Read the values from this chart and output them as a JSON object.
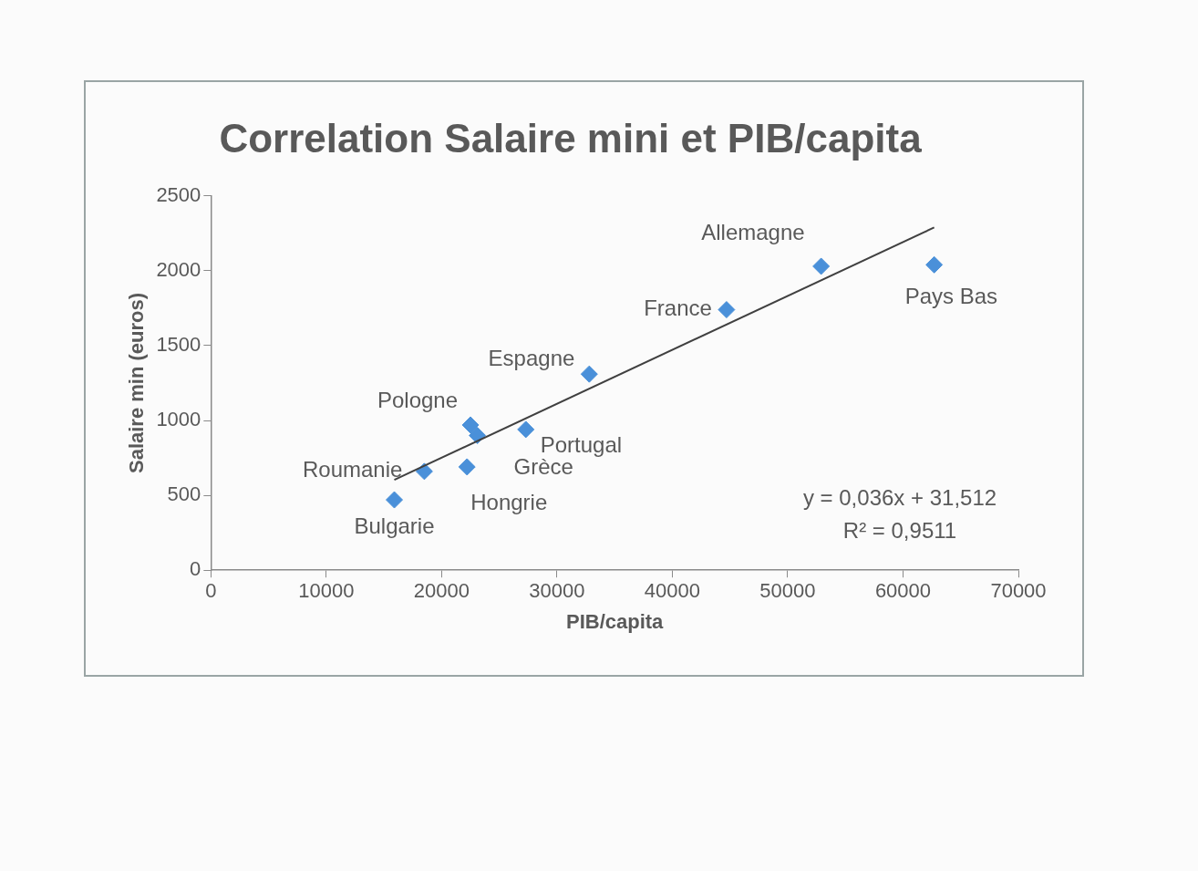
{
  "chart_data": {
    "type": "scatter",
    "title": "Correlation Salaire mini et PIB/capita",
    "xlabel": "PIB/capita",
    "ylabel": "Salaire min (euros)",
    "xlim": [
      0,
      70000
    ],
    "xticks": [
      0,
      10000,
      20000,
      30000,
      40000,
      50000,
      60000,
      70000
    ],
    "ylim": [
      0,
      2500
    ],
    "yticks": [
      0,
      500,
      1000,
      1500,
      2000,
      2500
    ],
    "grid": false,
    "legend": false,
    "marker": "diamond",
    "series": [
      {
        "color": "#4a90d9",
        "x": [
          15900,
          18500,
          22500,
          23100,
          22200,
          27300,
          32800,
          44700,
          52900,
          62700
        ],
        "values": [
          470,
          660,
          970,
          900,
          690,
          940,
          1310,
          1740,
          2030,
          2040
        ]
      },
      {
        "type": "line",
        "marker": "none",
        "color": "#404040",
        "x": [
          15900,
          62700
        ],
        "values": [
          604,
          2289
        ]
      }
    ],
    "annotations": [
      {
        "text": "Bulgarie",
        "x": 15900,
        "y": 470
      },
      {
        "text": "Roumanie",
        "x": 18500,
        "y": 660
      },
      {
        "text": "Pologne",
        "x": 22500,
        "y": 970
      },
      {
        "text": "Grèce",
        "x": 23100,
        "y": 900
      },
      {
        "text": "Hongrie",
        "x": 22200,
        "y": 690
      },
      {
        "text": "Portugal",
        "x": 27300,
        "y": 940
      },
      {
        "text": "Espagne",
        "x": 32800,
        "y": 1310
      },
      {
        "text": "France",
        "x": 44700,
        "y": 1740
      },
      {
        "text": "Allemagne",
        "x": 52900,
        "y": 2030
      },
      {
        "text": "Pays Bas",
        "x": 62700,
        "y": 2040
      },
      "y = 0,036x + 31,512",
      "R² = 0,9511"
    ]
  }
}
